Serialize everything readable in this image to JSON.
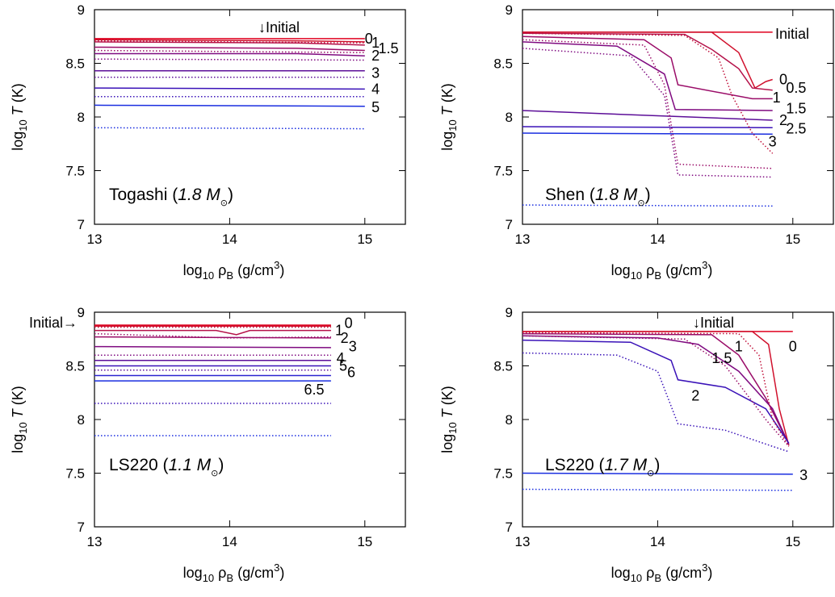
{
  "figure": {
    "colors": {
      "axis": "#000000",
      "initial": "#e0001f",
      "hot": "#c0103a",
      "mid": "#7a0a8a",
      "cool": "#2a12c8",
      "blue": "#1a2ee0"
    }
  },
  "chart_data": [
    {
      "type": "line",
      "panel_title": "Togashi (",
      "panel_title_italic": "1.8 M",
      "panel_title_symbol": "⊙",
      "panel_title_close": ")",
      "xlabel_base": "log",
      "xlabel_sub": "10",
      "xlabel_rest": " ρ",
      "xlabel_rest_sub": "B",
      "xlabel_unit": " (g/cm",
      "xlabel_unit_sup": "3",
      "xlabel_close": ")",
      "ylabel_base": "log",
      "ylabel_sub": "10",
      "ylabel_var": "T",
      "ylabel_unit": " (K)",
      "xlim": [
        13,
        15.3
      ],
      "ylim": [
        7,
        9
      ],
      "xticks": [
        "13",
        "14",
        "15"
      ],
      "yticks": [
        "7",
        "7.5",
        "8",
        "8.5",
        "9"
      ],
      "initial_label": "↓Initial",
      "series": [
        {
          "name": "Initial",
          "style": "solid",
          "color": "#e0001f",
          "x": [
            13,
            15.0
          ],
          "y": [
            8.73,
            8.73
          ]
        },
        {
          "name": "0",
          "style": "solid",
          "color": "#d0102c",
          "x": [
            13,
            14.5,
            15.0
          ],
          "y": [
            8.72,
            8.71,
            8.7
          ]
        },
        {
          "name": "1",
          "style": "solid",
          "color": "#b5124a",
          "x": [
            13,
            14.5,
            15.0
          ],
          "y": [
            8.7,
            8.69,
            8.67
          ]
        },
        {
          "name": "1.5",
          "style": "solid",
          "color": "#9a0c68",
          "x": [
            13,
            14.5,
            15.0
          ],
          "y": [
            8.65,
            8.64,
            8.62
          ]
        },
        {
          "name": "2",
          "style": "solid",
          "color": "#7f0a80",
          "x": [
            13,
            14.5,
            15.0
          ],
          "y": [
            8.59,
            8.59,
            8.57
          ]
        },
        {
          "name": "3",
          "style": "solid",
          "color": "#5c0e98",
          "x": [
            13,
            15.0
          ],
          "y": [
            8.43,
            8.43
          ]
        },
        {
          "name": "4",
          "style": "solid",
          "color": "#3a12b8",
          "x": [
            13,
            15.0
          ],
          "y": [
            8.27,
            8.26
          ]
        },
        {
          "name": "5",
          "style": "solid",
          "color": "#1a2ee0",
          "x": [
            13,
            15.0
          ],
          "y": [
            8.11,
            8.1
          ]
        },
        {
          "name": "",
          "style": "dotted",
          "color": "#c0103a",
          "x": [
            13,
            15.0
          ],
          "y": [
            8.71,
            8.69
          ]
        },
        {
          "name": "",
          "style": "dotted",
          "color": "#9a0c68",
          "x": [
            13,
            15.0
          ],
          "y": [
            8.62,
            8.6
          ]
        },
        {
          "name": "",
          "style": "dotted",
          "color": "#7f0a80",
          "x": [
            13,
            15.0
          ],
          "y": [
            8.54,
            8.53
          ]
        },
        {
          "name": "",
          "style": "dotted",
          "color": "#5c0e98",
          "x": [
            13,
            15.0
          ],
          "y": [
            8.37,
            8.37
          ]
        },
        {
          "name": "",
          "style": "dotted",
          "color": "#3a12b8",
          "x": [
            13,
            15.0
          ],
          "y": [
            8.19,
            8.19
          ]
        },
        {
          "name": "",
          "style": "dotted",
          "color": "#1a2ee0",
          "x": [
            13,
            15.0
          ],
          "y": [
            7.9,
            7.89
          ]
        }
      ],
      "labels": [
        {
          "text": "0",
          "x": 15.0,
          "y": 8.73
        },
        {
          "text": "1",
          "x": 15.05,
          "y": 8.69
        },
        {
          "text": "1.5",
          "x": 15.1,
          "y": 8.64
        },
        {
          "text": "2",
          "x": 15.05,
          "y": 8.57
        },
        {
          "text": "3",
          "x": 15.05,
          "y": 8.41
        },
        {
          "text": "4",
          "x": 15.05,
          "y": 8.26
        },
        {
          "text": "5",
          "x": 15.05,
          "y": 8.09
        }
      ]
    },
    {
      "type": "line",
      "panel_title": "Shen (",
      "panel_title_italic": "1.8 M",
      "panel_title_symbol": "⊙",
      "panel_title_close": ")",
      "xlabel_base": "log",
      "xlabel_sub": "10",
      "xlabel_rest": " ρ",
      "xlabel_rest_sub": "B",
      "xlabel_unit": " (g/cm",
      "xlabel_unit_sup": "3",
      "xlabel_close": ")",
      "ylabel_base": "log",
      "ylabel_sub": "10",
      "ylabel_var": "T",
      "ylabel_unit": " (K)",
      "xlim": [
        13,
        15.3
      ],
      "ylim": [
        7,
        9
      ],
      "xticks": [
        "13",
        "14",
        "15"
      ],
      "yticks": [
        "7",
        "7.5",
        "8",
        "8.5",
        "9"
      ],
      "initial_label": "Initial",
      "series": [
        {
          "name": "Initial",
          "style": "solid",
          "color": "#e0001f",
          "x": [
            13,
            14.85
          ],
          "y": [
            8.79,
            8.79
          ]
        },
        {
          "name": "0",
          "style": "solid",
          "color": "#d0102c",
          "x": [
            13,
            14.4,
            14.6,
            14.72,
            14.8,
            14.85
          ],
          "y": [
            8.79,
            8.79,
            8.6,
            8.27,
            8.33,
            8.35
          ]
        },
        {
          "name": "0.5",
          "style": "solid",
          "color": "#b5124a",
          "x": [
            13,
            14.2,
            14.4,
            14.6,
            14.7,
            14.85
          ],
          "y": [
            8.78,
            8.77,
            8.63,
            8.45,
            8.27,
            8.25
          ]
        },
        {
          "name": "1",
          "style": "solid",
          "color": "#9a0c68",
          "x": [
            13,
            13.9,
            14.1,
            14.15,
            14.7,
            14.85
          ],
          "y": [
            8.75,
            8.72,
            8.55,
            8.3,
            8.17,
            8.17
          ]
        },
        {
          "name": "1.5",
          "style": "solid",
          "color": "#7f0a80",
          "x": [
            13,
            13.7,
            14.05,
            14.13,
            14.85
          ],
          "y": [
            8.7,
            8.66,
            8.4,
            8.07,
            8.06
          ]
        },
        {
          "name": "2",
          "style": "solid",
          "color": "#5c0e98",
          "x": [
            13,
            14.85
          ],
          "y": [
            8.06,
            7.97
          ]
        },
        {
          "name": "2.5",
          "style": "solid",
          "color": "#3a12b8",
          "x": [
            13,
            14.85
          ],
          "y": [
            7.91,
            7.9
          ]
        },
        {
          "name": "3",
          "style": "solid",
          "color": "#1a2ee0",
          "x": [
            13,
            14.85
          ],
          "y": [
            7.85,
            7.84
          ]
        },
        {
          "name": "",
          "style": "dotted",
          "color": "#c0103a",
          "x": [
            13,
            14.2,
            14.45,
            14.55,
            14.7,
            14.85
          ],
          "y": [
            8.78,
            8.76,
            8.55,
            8.2,
            7.85,
            7.66
          ]
        },
        {
          "name": "",
          "style": "dotted",
          "color": "#9a0c68",
          "x": [
            13,
            13.9,
            14.05,
            14.15,
            14.85
          ],
          "y": [
            8.72,
            8.67,
            8.3,
            7.56,
            7.52
          ]
        },
        {
          "name": "",
          "style": "dotted",
          "color": "#7f0a80",
          "x": [
            13,
            13.8,
            14.05,
            14.15,
            14.85
          ],
          "y": [
            8.64,
            8.57,
            8.2,
            7.46,
            7.44
          ]
        },
        {
          "name": "",
          "style": "dotted",
          "color": "#1a2ee0",
          "x": [
            13,
            14.85
          ],
          "y": [
            7.18,
            7.17
          ]
        }
      ],
      "labels": [
        {
          "text": "0",
          "x": 14.9,
          "y": 8.35
        },
        {
          "text": "0.5",
          "x": 14.95,
          "y": 8.27
        },
        {
          "text": "1",
          "x": 14.85,
          "y": 8.18
        },
        {
          "text": "1.5",
          "x": 14.95,
          "y": 8.08
        },
        {
          "text": "2",
          "x": 14.9,
          "y": 7.97
        },
        {
          "text": "2.5",
          "x": 14.95,
          "y": 7.89
        },
        {
          "text": "3",
          "x": 14.82,
          "y": 7.77
        }
      ]
    },
    {
      "type": "line",
      "panel_title": "LS220 (",
      "panel_title_italic": "1.1 M",
      "panel_title_symbol": "⊙",
      "panel_title_close": ")",
      "xlabel_base": "log",
      "xlabel_sub": "10",
      "xlabel_rest": " ρ",
      "xlabel_rest_sub": "B",
      "xlabel_unit": " (g/cm",
      "xlabel_unit_sup": "3",
      "xlabel_close": ")",
      "ylabel_base": "log",
      "ylabel_sub": "10",
      "ylabel_var": "T",
      "ylabel_unit": " (K)",
      "xlim": [
        13,
        15.3
      ],
      "ylim": [
        7,
        9
      ],
      "xticks": [
        "13",
        "14",
        "15"
      ],
      "yticks": [
        "7",
        "7.5",
        "8",
        "8.5",
        "9"
      ],
      "initial_label": "Initial→",
      "series": [
        {
          "name": "Initial",
          "style": "solid",
          "color": "#e0001f",
          "x": [
            13,
            14.75
          ],
          "y": [
            8.88,
            8.88
          ]
        },
        {
          "name": "0",
          "style": "solid",
          "color": "#d0102c",
          "x": [
            13,
            14.75
          ],
          "y": [
            8.87,
            8.87
          ]
        },
        {
          "name": "1",
          "style": "solid",
          "color": "#b5124a",
          "x": [
            13,
            13.9,
            14.05,
            14.15,
            14.75
          ],
          "y": [
            8.83,
            8.83,
            8.79,
            8.83,
            8.83
          ]
        },
        {
          "name": "2",
          "style": "solid",
          "color": "#9a0c68",
          "x": [
            13,
            14.75
          ],
          "y": [
            8.77,
            8.76
          ]
        },
        {
          "name": "3",
          "style": "solid",
          "color": "#7f0a80",
          "x": [
            13,
            14.75
          ],
          "y": [
            8.68,
            8.67
          ]
        },
        {
          "name": "4",
          "style": "solid",
          "color": "#5c0e98",
          "x": [
            13,
            14.75
          ],
          "y": [
            8.55,
            8.55
          ]
        },
        {
          "name": "5",
          "style": "solid",
          "color": "#3a12b8",
          "x": [
            13,
            14.75
          ],
          "y": [
            8.5,
            8.5
          ]
        },
        {
          "name": "6",
          "style": "solid",
          "color": "#2a22d0",
          "x": [
            13,
            14.75
          ],
          "y": [
            8.41,
            8.41
          ]
        },
        {
          "name": "6.5",
          "style": "solid",
          "color": "#1a2ee0",
          "x": [
            13,
            14.75
          ],
          "y": [
            8.36,
            8.36
          ]
        },
        {
          "name": "",
          "style": "dotted",
          "color": "#c0103a",
          "x": [
            13,
            14.75
          ],
          "y": [
            8.86,
            8.86
          ]
        },
        {
          "name": "",
          "style": "dotted",
          "color": "#9a0c68",
          "x": [
            13,
            14.0,
            14.75
          ],
          "y": [
            8.8,
            8.76,
            8.77
          ]
        },
        {
          "name": "",
          "style": "dotted",
          "color": "#7f0a80",
          "x": [
            13,
            14.75
          ],
          "y": [
            8.6,
            8.6
          ]
        },
        {
          "name": "",
          "style": "dotted",
          "color": "#5c0e98",
          "x": [
            13,
            14.75
          ],
          "y": [
            8.46,
            8.46
          ]
        },
        {
          "name": "",
          "style": "dotted",
          "color": "#3a12b8",
          "x": [
            13,
            14.75
          ],
          "y": [
            8.15,
            8.15
          ]
        },
        {
          "name": "",
          "style": "dotted",
          "color": "#1a2ee0",
          "x": [
            13,
            14.75
          ],
          "y": [
            7.85,
            7.85
          ]
        }
      ],
      "labels": [
        {
          "text": "0",
          "x": 14.85,
          "y": 8.9
        },
        {
          "text": "1",
          "x": 14.78,
          "y": 8.83
        },
        {
          "text": "2",
          "x": 14.82,
          "y": 8.76
        },
        {
          "text": "3",
          "x": 14.88,
          "y": 8.68
        },
        {
          "text": "4",
          "x": 14.79,
          "y": 8.57
        },
        {
          "text": "5",
          "x": 14.81,
          "y": 8.5
        },
        {
          "text": "6",
          "x": 14.87,
          "y": 8.44
        },
        {
          "text": "6.5",
          "x": 14.55,
          "y": 8.28
        }
      ]
    },
    {
      "type": "line",
      "panel_title": "LS220 (",
      "panel_title_italic": "1.7 M",
      "panel_title_symbol": "⊙",
      "panel_title_close": ")",
      "xlabel_base": "log",
      "xlabel_sub": "10",
      "xlabel_rest": " ρ",
      "xlabel_rest_sub": "B",
      "xlabel_unit": " (g/cm",
      "xlabel_unit_sup": "3",
      "xlabel_close": ")",
      "ylabel_base": "log",
      "ylabel_sub": "10",
      "ylabel_var": "T",
      "ylabel_unit": " (K)",
      "xlim": [
        13,
        15.3
      ],
      "ylim": [
        7,
        9
      ],
      "xticks": [
        "13",
        "14",
        "15"
      ],
      "yticks": [
        "7",
        "7.5",
        "8",
        "8.5",
        "9"
      ],
      "initial_label": "↓Initial",
      "series": [
        {
          "name": "Initial",
          "style": "solid",
          "color": "#e0001f",
          "x": [
            13,
            15.0
          ],
          "y": [
            8.82,
            8.82
          ]
        },
        {
          "name": "0",
          "style": "solid",
          "color": "#d0102c",
          "x": [
            13,
            14.7,
            14.82,
            14.9,
            14.97
          ],
          "y": [
            8.82,
            8.82,
            8.7,
            8.1,
            7.76
          ]
        },
        {
          "name": "1",
          "style": "solid",
          "color": "#9a0c68",
          "x": [
            13,
            14.4,
            14.6,
            14.8,
            14.97
          ],
          "y": [
            8.8,
            8.79,
            8.6,
            8.2,
            7.77
          ]
        },
        {
          "name": "1.5",
          "style": "solid",
          "color": "#7f0a80",
          "x": [
            13,
            14.0,
            14.3,
            14.6,
            14.85,
            14.97
          ],
          "y": [
            8.78,
            8.76,
            8.7,
            8.45,
            8.1,
            7.77
          ]
        },
        {
          "name": "2",
          "style": "solid",
          "color": "#3a12b8",
          "x": [
            13,
            13.8,
            14.1,
            14.15,
            14.5,
            14.8,
            14.97
          ],
          "y": [
            8.74,
            8.72,
            8.55,
            8.37,
            8.3,
            8.1,
            7.78
          ]
        },
        {
          "name": "3",
          "style": "solid",
          "color": "#1a2ee0",
          "x": [
            13,
            15.0
          ],
          "y": [
            7.5,
            7.49
          ]
        },
        {
          "name": "",
          "style": "dotted",
          "color": "#c0103a",
          "x": [
            13,
            14.6,
            14.75,
            14.85,
            14.97
          ],
          "y": [
            8.81,
            8.8,
            8.6,
            8.0,
            7.75
          ]
        },
        {
          "name": "",
          "style": "dotted",
          "color": "#9a0c68",
          "x": [
            13,
            14.2,
            14.5,
            14.8,
            14.97
          ],
          "y": [
            8.78,
            8.75,
            8.5,
            8.0,
            7.75
          ]
        },
        {
          "name": "",
          "style": "dotted",
          "color": "#3a12b8",
          "x": [
            13,
            13.7,
            14.0,
            14.15,
            14.5,
            14.85,
            14.97
          ],
          "y": [
            8.62,
            8.6,
            8.45,
            7.96,
            7.9,
            7.75,
            7.7
          ]
        },
        {
          "name": "",
          "style": "dotted",
          "color": "#1a2ee0",
          "x": [
            13,
            15.0
          ],
          "y": [
            7.35,
            7.34
          ]
        }
      ],
      "labels": [
        {
          "text": "0",
          "x": 14.97,
          "y": 8.68
        },
        {
          "text": "1",
          "x": 14.57,
          "y": 8.68
        },
        {
          "text": "1.5",
          "x": 14.4,
          "y": 8.57
        },
        {
          "text": "2",
          "x": 14.25,
          "y": 8.22
        },
        {
          "text": "3",
          "x": 15.05,
          "y": 7.48
        }
      ]
    }
  ]
}
